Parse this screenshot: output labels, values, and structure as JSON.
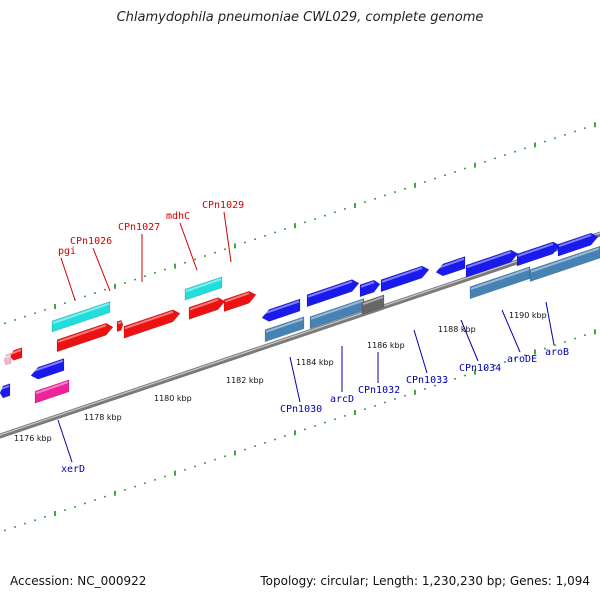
{
  "header": {
    "title": "Chlamydophila pneumoniae CWL029, complete genome"
  },
  "footer": {
    "accession": "Accession: NC_000922",
    "summary": "Topology: circular; Length: 1,230,230 bp; Genes: 1,094"
  },
  "colors": {
    "backbone": "#888888",
    "tick": "#1a8a1a",
    "label_red": "#d00000",
    "label_blue": "#0000aa",
    "gene_red": "#ee1111",
    "gene_cyan": "#22dddd",
    "gene_blue": "#1a1aee",
    "gene_steel": "#4682b4",
    "gene_gray": "#666666",
    "gene_magenta": "#ee2299",
    "gene_pink": "#f4b8c8"
  },
  "scale_labels": [
    "1176 kbp",
    "1178 kbp",
    "1180 kbp",
    "1182 kbp",
    "1184 kbp",
    "1186 kbp",
    "1188 kbp",
    "1190 kbp"
  ],
  "gene_labels_top": [
    "pgi",
    "CPn1026",
    "CPn1027",
    "mdhC",
    "CPn1029"
  ],
  "gene_labels_bottom": [
    "xerD",
    "CPn1030",
    "arcD",
    "CPn1032",
    "CPn1033",
    "CPn1034",
    "aroDE",
    "aroB"
  ]
}
